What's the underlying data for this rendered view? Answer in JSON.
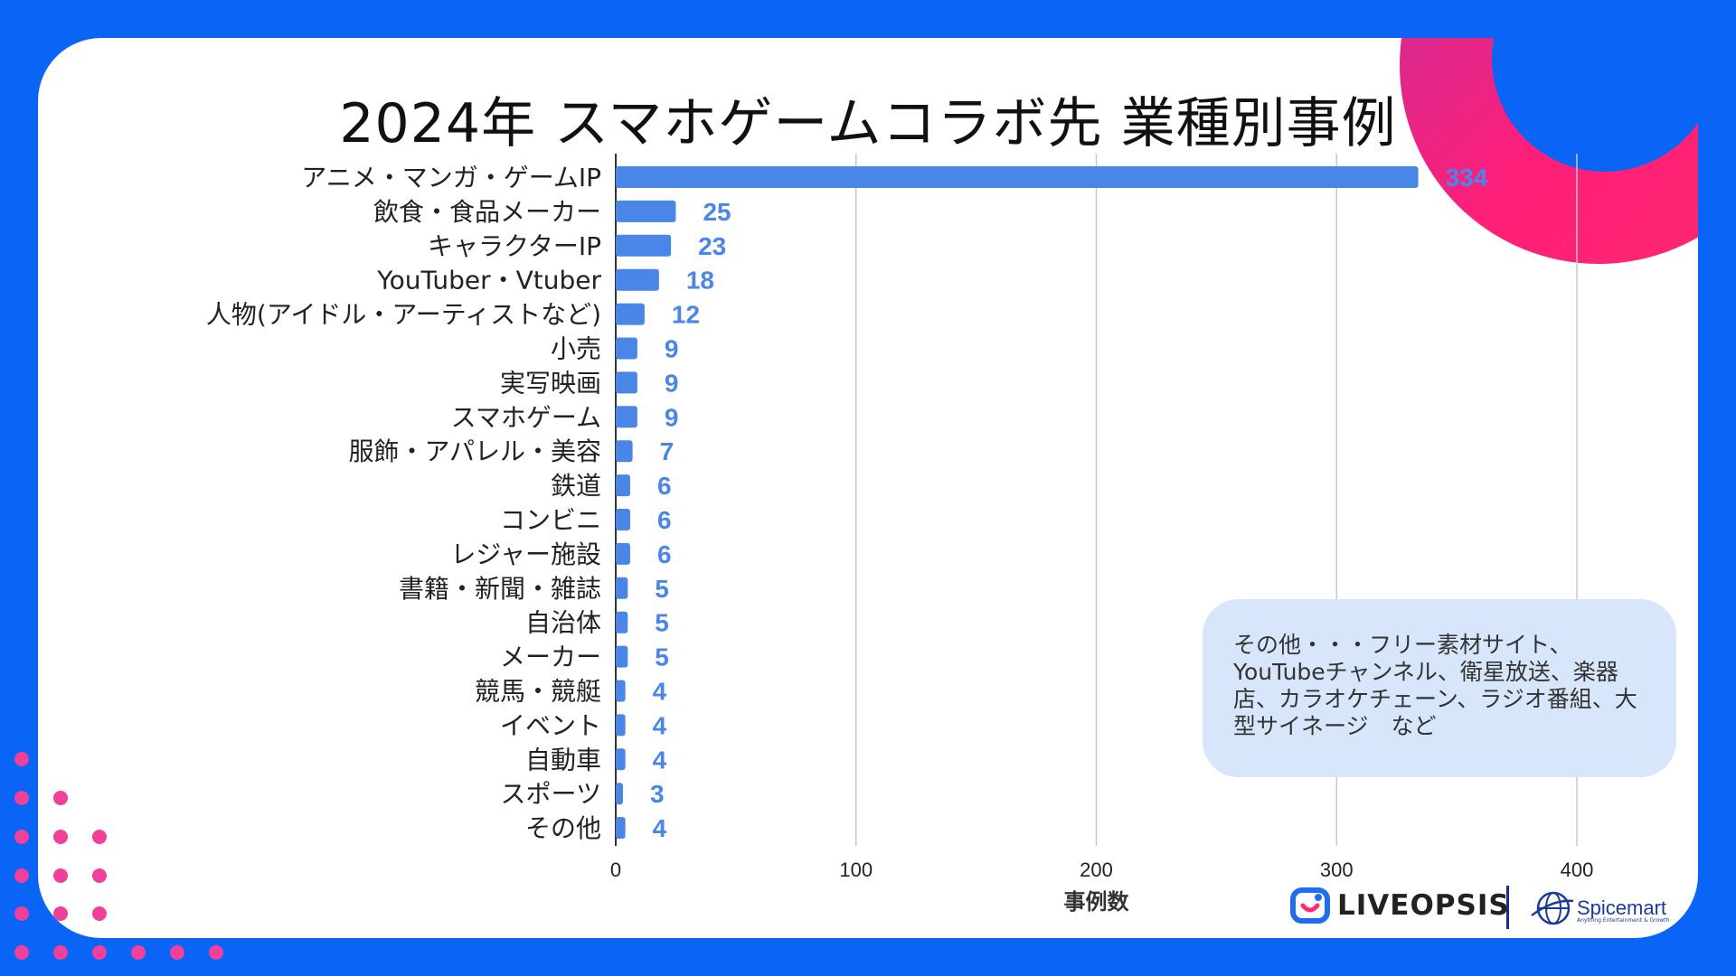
{
  "title": "2024年 スマホゲームコラボ先 業種別事例",
  "note": "その他・・・フリー素材サイト、YouTubeチャンネル、衛星放送、楽器店、カラオケチェーン、ラジオ番組、大型サイネージ　など",
  "logos": {
    "liveopsis": "LIVEOPSIS",
    "spicemart": "Spicemart",
    "spicemart_sub": "Anything Entertainment & Growth"
  },
  "colors": {
    "background": "#0a64f5",
    "bar": "#4a86e8",
    "accent_pink": "#ff2a6d",
    "note_bg": "#d7e6fb"
  },
  "chart_data": {
    "type": "bar",
    "orientation": "horizontal",
    "categories": [
      "アニメ・マンガ・ゲームIP",
      "飲食・食品メーカー",
      "キャラクターIP",
      "YouTuber・Vtuber",
      "人物(アイドル・アーティストなど)",
      "小売",
      "実写映画",
      "スマホゲーム",
      "服飾・アパレル・美容",
      "鉄道",
      "コンビニ",
      "レジャー施設",
      "書籍・新聞・雑誌",
      "自治体",
      "メーカー",
      "競馬・競艇",
      "イベント",
      "自動車",
      "スポーツ",
      "その他"
    ],
    "values": [
      334,
      25,
      23,
      18,
      12,
      9,
      9,
      9,
      7,
      6,
      6,
      6,
      5,
      5,
      5,
      4,
      4,
      4,
      3,
      4
    ],
    "xlabel": "事例数",
    "ylabel": "",
    "xlim": [
      0,
      400
    ],
    "xticks": [
      0,
      100,
      200,
      300,
      400
    ],
    "grid": true
  }
}
